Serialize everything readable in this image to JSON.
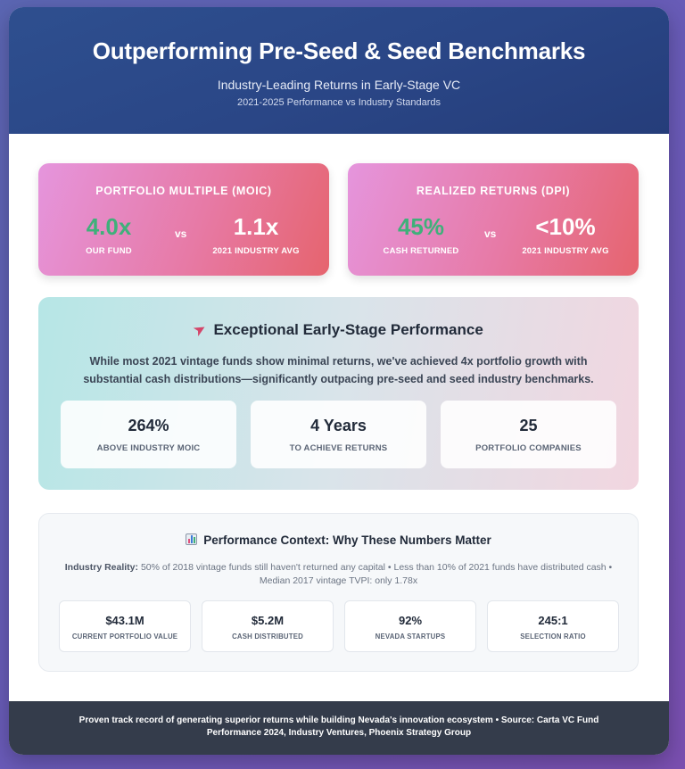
{
  "header": {
    "title": "Outperforming Pre-Seed & Seed Benchmarks",
    "subtitle": "Industry-Leading Returns in Early-Stage VC",
    "period": "2021-2025 Performance vs Industry Standards"
  },
  "metrics": [
    {
      "title": "PORTFOLIO MULTIPLE (MOIC)",
      "ours_value": "4.0x",
      "ours_label": "OUR FUND",
      "vs": "vs",
      "industry_value": "1.1x",
      "industry_label": "2021 INDUSTRY AVG"
    },
    {
      "title": "REALIZED RETURNS (DPI)",
      "ours_value": "45%",
      "ours_label": "CASH RETURNED",
      "vs": "vs",
      "industry_value": "<10%",
      "industry_label": "2021 INDUSTRY AVG"
    }
  ],
  "performance": {
    "icon": "rocket-icon",
    "title": "Exceptional Early-Stage Performance",
    "description": "While most 2021 vintage funds show minimal returns, we've achieved 4x portfolio growth with substantial cash distributions—significantly outpacing pre-seed and seed industry benchmarks.",
    "stats": [
      {
        "value": "264%",
        "label": "ABOVE INDUSTRY MOIC"
      },
      {
        "value": "4 Years",
        "label": "TO ACHIEVE RETURNS"
      },
      {
        "value": "25",
        "label": "PORTFOLIO COMPANIES"
      }
    ]
  },
  "context": {
    "icon": "bar-chart-icon",
    "title": "Performance Context: Why These Numbers Matter",
    "lead": "Industry Reality:",
    "description": "50% of 2018 vintage funds still haven't returned any capital • Less than 10% of 2021 funds have distributed cash • Median 2017 vintage TVPI: only 1.78x",
    "stats": [
      {
        "value": "$43.1M",
        "label": "CURRENT PORTFOLIO VALUE"
      },
      {
        "value": "$5.2M",
        "label": "CASH DISTRIBUTED"
      },
      {
        "value": "92%",
        "label": "NEVADA STARTUPS"
      },
      {
        "value": "245:1",
        "label": "SELECTION RATIO"
      }
    ]
  },
  "footer": {
    "text": "Proven track record of generating superior returns while building Nevada's innovation ecosystem • Source: Carta VC Fund Performance 2024, Industry Ventures, Phoenix Strategy Group"
  },
  "colors": {
    "header_bg": "#2a4686",
    "highlight_green": "#3fb07a",
    "footer_bg": "#343c4b"
  }
}
